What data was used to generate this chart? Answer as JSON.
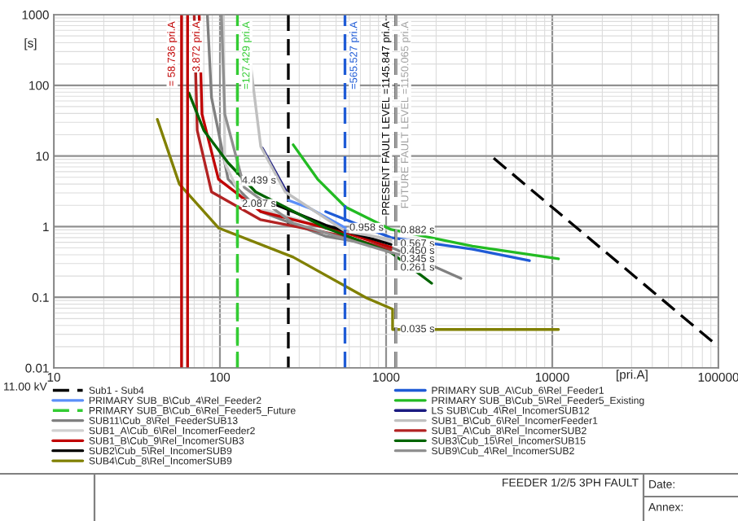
{
  "chart_data": {
    "type": "line",
    "xlabel": "[pri.A]",
    "ylabel": "[s]",
    "log": "xy",
    "grid": true,
    "legend": "bottom",
    "xlim": [
      10,
      100000
    ],
    "xticks": [
      10,
      100,
      1000,
      10000,
      100000
    ],
    "ylim": [
      0.01,
      1000
    ],
    "yticks": [
      0.01,
      0.1,
      1,
      10,
      100,
      1000
    ],
    "series": [
      {
        "name": "Sub1 - Sub4",
        "color": "#000000",
        "line_style": "dashed",
        "x": [
          258,
          258,
          1000,
          4440,
          100000
        ],
        "values": [
          1000,
          0.01,
          null,
          9.3,
          0.02
        ]
      },
      {
        "name": "PRIMARY SUB_B\\Cub_4\\Rel_Feeder2",
        "color": "#5b8ff9",
        "x": [
          258,
          346,
          569
        ],
        "values": [
          2.36,
          1.83,
          0.96
        ]
      },
      {
        "name": "PRIMARY SUB_B\\Cub_6\\Rel_Feeder5_Future",
        "color": "#33cc33",
        "line_style": "dashed",
        "x": [
          127.429,
          127.429
        ],
        "values": [
          100,
          0.01
        ]
      },
      {
        "name": "SUB11\\Cub_8\\Rel_FeederSUB13",
        "color": "#808080",
        "x": [
          84,
          89,
          112,
          176,
          433,
          1070,
          2820
        ],
        "values": [
          1000,
          67,
          4.7,
          1.63,
          0.73,
          0.51,
          0.185
        ]
      },
      {
        "name": "SUB1_A\\Cub_6\\Rel_IncomerFeeder2",
        "color": "#d0d0d0",
        "x": [
          105,
          107,
          140,
          433,
          1070
        ],
        "values": [
          1000,
          8,
          2.1,
          0.96,
          0.62
        ]
      },
      {
        "name": "SUB1_B\\Cub_9\\Rel_IncomerSUB3",
        "color": "#c00000",
        "x": [
          75,
          78,
          98,
          176,
          569,
          1070
        ],
        "values": [
          1000,
          39,
          4.7,
          1.63,
          0.82,
          0.51
        ]
      },
      {
        "name": "SUB2\\Cub_5\\Rel_IncomerSUB9",
        "color": "#000000",
        "x": [
          211,
          433,
          1070
        ],
        "values": [
          2.1,
          1.05,
          0.56
        ]
      },
      {
        "name": "SUB4\\Cub_8\\Rel_IncomerSUB9",
        "color": "#808000",
        "x": [
          42,
          57,
          98,
          276,
          762,
          1094,
          1094,
          10900
        ],
        "values": [
          33,
          4,
          0.96,
          0.37,
          0.098,
          0.068,
          0.035,
          0.035
        ]
      },
      {
        "name": "PRIMARY SUB_A\\Cub_6\\Rel_Feeder1",
        "color": "#1f5bd6",
        "x": [
          433,
          1070,
          3310,
          7290
        ],
        "values": [
          1.63,
          0.7,
          0.48,
          0.33
        ]
      },
      {
        "name": "PRIMARY SUB_B\\Cub_5\\Rel_Feeder5_Existing",
        "color": "#22bb22",
        "x": [
          276,
          387,
          569,
          1070,
          3310,
          10900
        ],
        "values": [
          14.4,
          4.7,
          1.9,
          0.91,
          0.53,
          0.35
        ]
      },
      {
        "name": "LS SUB\\Cub_4\\Rel_IncomerSUB12",
        "color": "#1a1a80",
        "x": [
          180,
          252
        ],
        "values": [
          12.9,
          3.1
        ]
      },
      {
        "name": "SUB1_B\\Cub_6\\Rel_IncomerFeeder1",
        "color": "#c0c0c0",
        "x": [
          153,
          176,
          247,
          569,
          1070
        ],
        "values": [
          193,
          13.6,
          3.1,
          0.86,
          0.66
        ]
      },
      {
        "name": "SUB1_A\\Cub_8\\Rel_IncomerSUB2",
        "color": "#b22222",
        "x": [
          70,
          73,
          89,
          176,
          569,
          1070
        ],
        "values": [
          1000,
          23,
          3.1,
          1.25,
          0.73,
          0.47
        ]
      },
      {
        "name": "SUB3\\Cub_15\\Rel_IncomerSUB15",
        "color": "#006400",
        "x": [
          65,
          80,
          112,
          164,
          433,
          1070,
          1880
        ],
        "values": [
          78,
          23,
          8,
          3.1,
          0.96,
          0.43,
          0.158
        ]
      },
      {
        "name": "SUB9\\Cub_4\\Rel_IncomerSUB2",
        "color": "#909090",
        "x": [
          102,
          107,
          140,
          276,
          1070,
          1680
        ],
        "values": [
          1000,
          39,
          3.6,
          1.12,
          0.43,
          0.33
        ]
      }
    ],
    "ref_lines": [
      {
        "axis": "x",
        "value": 58.736,
        "label": "= 58.736 pri.A",
        "color": "#c00000"
      },
      {
        "axis": "x",
        "value": 63.872,
        "label": "3.872 pri.A",
        "color": "#c00000"
      },
      {
        "axis": "x",
        "value": 127.429,
        "label": "=127.429 pri.A",
        "color": "#33cc33",
        "line_style": "dashed"
      },
      {
        "axis": "x",
        "value": 565.527,
        "label": "=565.527 pri.A",
        "color": "#1f5bd6",
        "line_style": "dashed"
      },
      {
        "axis": "x",
        "value": 1145.847,
        "label": "PRESENT FAULT LEVEL =1145.847 pri.A",
        "color": "#000000",
        "line_style": "dashed"
      },
      {
        "axis": "x",
        "value": 1150.065,
        "label": "FUTURE FAULT LEVEL =1150.065 pri.A",
        "color": "#a0a0a0",
        "line_style": "dashed"
      }
    ],
    "annotations": [
      {
        "text": "4.439 s",
        "x": 127.429,
        "y": 4.439
      },
      {
        "text": "2.087 s",
        "x": 127.429,
        "y": 2.087
      },
      {
        "text": "0.958 s",
        "x": 565.527,
        "y": 0.958
      },
      {
        "text": "0.882 s",
        "x": 1145.847,
        "y": 0.882
      },
      {
        "text": "0.567 s",
        "x": 1145.847,
        "y": 0.567
      },
      {
        "text": "0.450 s",
        "x": 1145.847,
        "y": 0.45
      },
      {
        "text": "0.345 s",
        "x": 1145.847,
        "y": 0.345
      },
      {
        "text": "0.261 s",
        "x": 1145.847,
        "y": 0.261
      },
      {
        "text": "0.035 s",
        "x": 1145.847,
        "y": 0.035
      },
      "11.00 kV",
      "FEEDER 1/2/5 3PH FAULT",
      "Date:",
      "Annex:"
    ]
  }
}
